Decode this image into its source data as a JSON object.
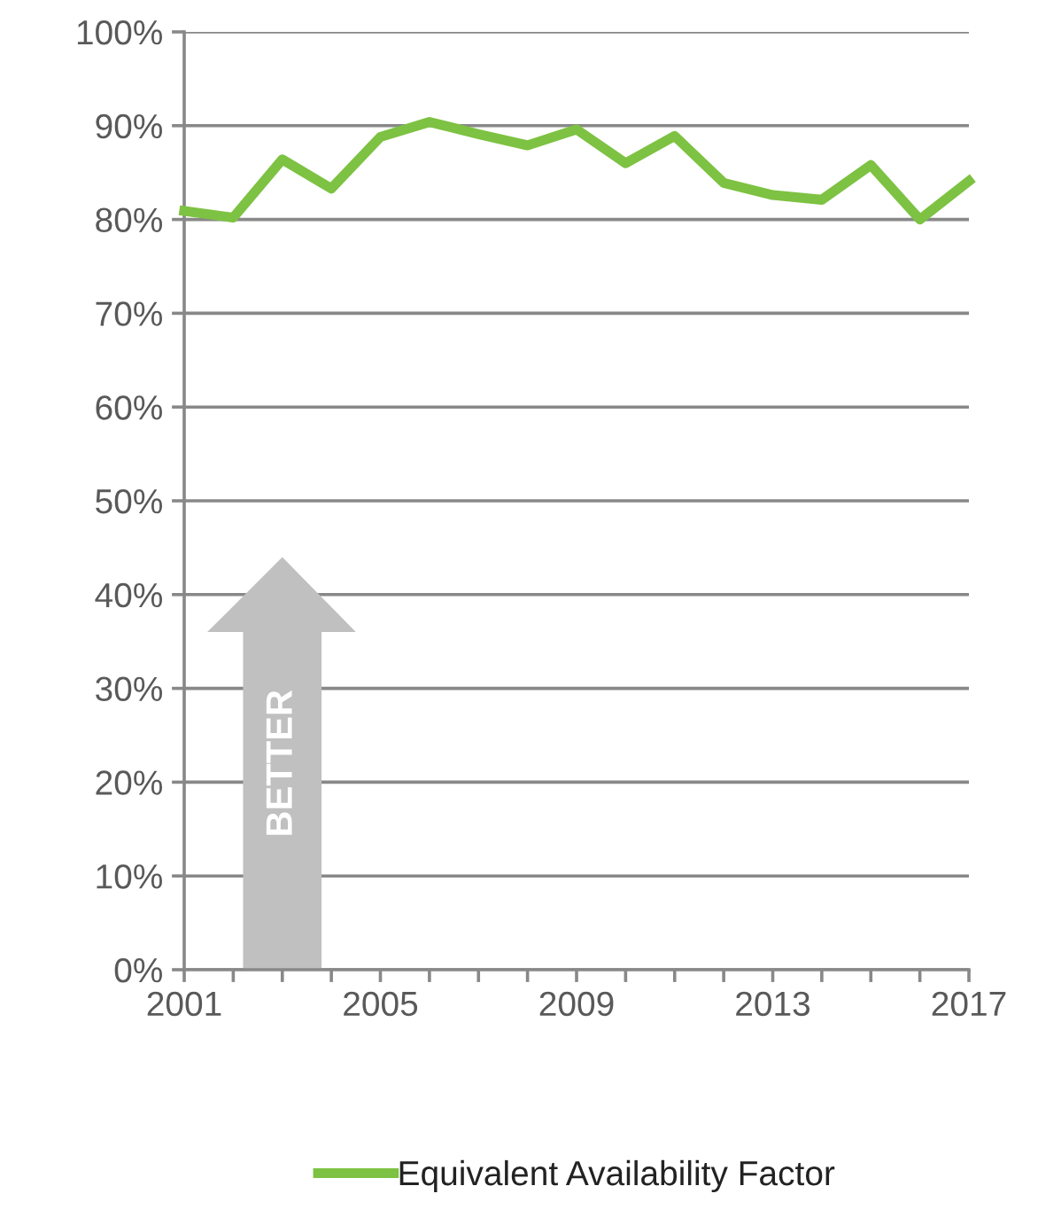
{
  "chart_data": {
    "type": "line",
    "x": [
      2001,
      2002,
      2003,
      2004,
      2005,
      2006,
      2007,
      2008,
      2009,
      2010,
      2011,
      2012,
      2013,
      2014,
      2015,
      2016,
      2017
    ],
    "series": [
      {
        "name": "Equivalent Availability Factor",
        "color": "#7dc242",
        "values": [
          80.9,
          80.2,
          86.4,
          83.3,
          88.8,
          90.4,
          89.1,
          87.9,
          89.6,
          86.0,
          88.9,
          83.9,
          82.6,
          82.1,
          85.8,
          80.0,
          84.1
        ]
      }
    ],
    "xlim": [
      2001,
      2017
    ],
    "xticks": [
      2001,
      {
        "value": 2002,
        "label": null
      },
      {
        "value": 2003,
        "label": null
      },
      {
        "value": 2004,
        "label": null
      },
      2005,
      {
        "value": 2006,
        "label": null
      },
      {
        "value": 2007,
        "label": null
      },
      {
        "value": 2008,
        "label": null
      },
      2009,
      {
        "value": 2010,
        "label": null
      },
      {
        "value": 2011,
        "label": null
      },
      {
        "value": 2012,
        "label": null
      },
      2013,
      {
        "value": 2014,
        "label": null
      },
      {
        "value": 2015,
        "label": null
      },
      {
        "value": 2016,
        "label": null
      },
      2017
    ],
    "ylim": [
      0,
      100
    ],
    "yticks": [
      {
        "value": 0,
        "label": "0%"
      },
      {
        "value": 10,
        "label": "10%"
      },
      {
        "value": 20,
        "label": "20%"
      },
      {
        "value": 30,
        "label": "30%"
      },
      {
        "value": 40,
        "label": "40%"
      },
      {
        "value": 50,
        "label": "50%"
      },
      {
        "value": 60,
        "label": "60%"
      },
      {
        "value": 70,
        "label": "70%"
      },
      {
        "value": 80,
        "label": "80%"
      },
      {
        "value": 90,
        "label": "90%"
      },
      {
        "value": 100,
        "label": "100%"
      }
    ],
    "grid": "y",
    "legend": "bottom",
    "marker": "none",
    "line_style": "solid",
    "annotations": [
      "BETTER"
    ]
  }
}
